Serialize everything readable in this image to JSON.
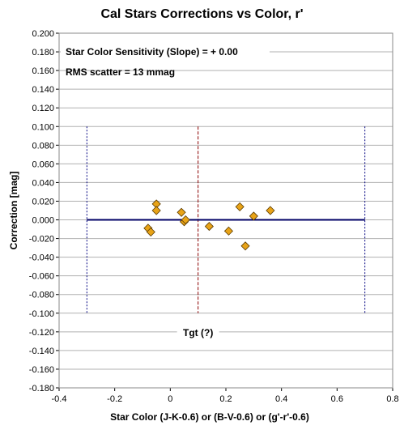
{
  "chart_data": {
    "type": "scatter",
    "title": "Cal Stars Corrections  vs Color, r'",
    "xlabel": "Star Color (J-K-0.6)  or (B-V-0.6)  or (g'-r'-0.6)",
    "ylabel": "Correction [mag]",
    "xlim": [
      -0.4,
      0.8
    ],
    "ylim": [
      -0.18,
      0.2
    ],
    "x_ticks": [
      "-0.4",
      "-0.2",
      "0",
      "0.2",
      "0.4",
      "0.6",
      "0.8"
    ],
    "y_ticks": [
      "0.200",
      "0.180",
      "0.160",
      "0.140",
      "0.120",
      "0.100",
      "0.080",
      "0.060",
      "0.040",
      "0.020",
      "0.000",
      "-0.020",
      "-0.040",
      "-0.060",
      "-0.080",
      "-0.100",
      "-0.120",
      "-0.140",
      "-0.160",
      "-0.180"
    ],
    "grid": true,
    "annotations": {
      "line1": "Star Color Sensitivity (Slope)  =  + 0.00",
      "line2": "RMS scatter = 13  mmag",
      "target": "Tgt (?)"
    },
    "fit_line": {
      "x": [
        -0.3,
        0.7
      ],
      "y": [
        0.0,
        0.0
      ],
      "color": "#000066"
    },
    "bounds": {
      "x": [
        -0.3,
        0.7
      ],
      "y": [
        -0.1,
        0.1
      ],
      "color": "#000080"
    },
    "target_x": 0.1,
    "target_y": [
      -0.1,
      0.1
    ],
    "target_color": "#8b0000",
    "marker_color": "#e8a317",
    "series": [
      {
        "x": [
          -0.05,
          -0.05,
          -0.08,
          -0.07,
          0.04,
          0.05,
          0.055,
          0.14,
          0.21,
          0.25,
          0.27,
          0.3,
          0.36
        ],
        "y": [
          0.017,
          0.01,
          -0.009,
          -0.013,
          0.008,
          -0.002,
          0.0,
          -0.007,
          -0.012,
          0.014,
          -0.028,
          0.004,
          0.01
        ]
      }
    ]
  }
}
